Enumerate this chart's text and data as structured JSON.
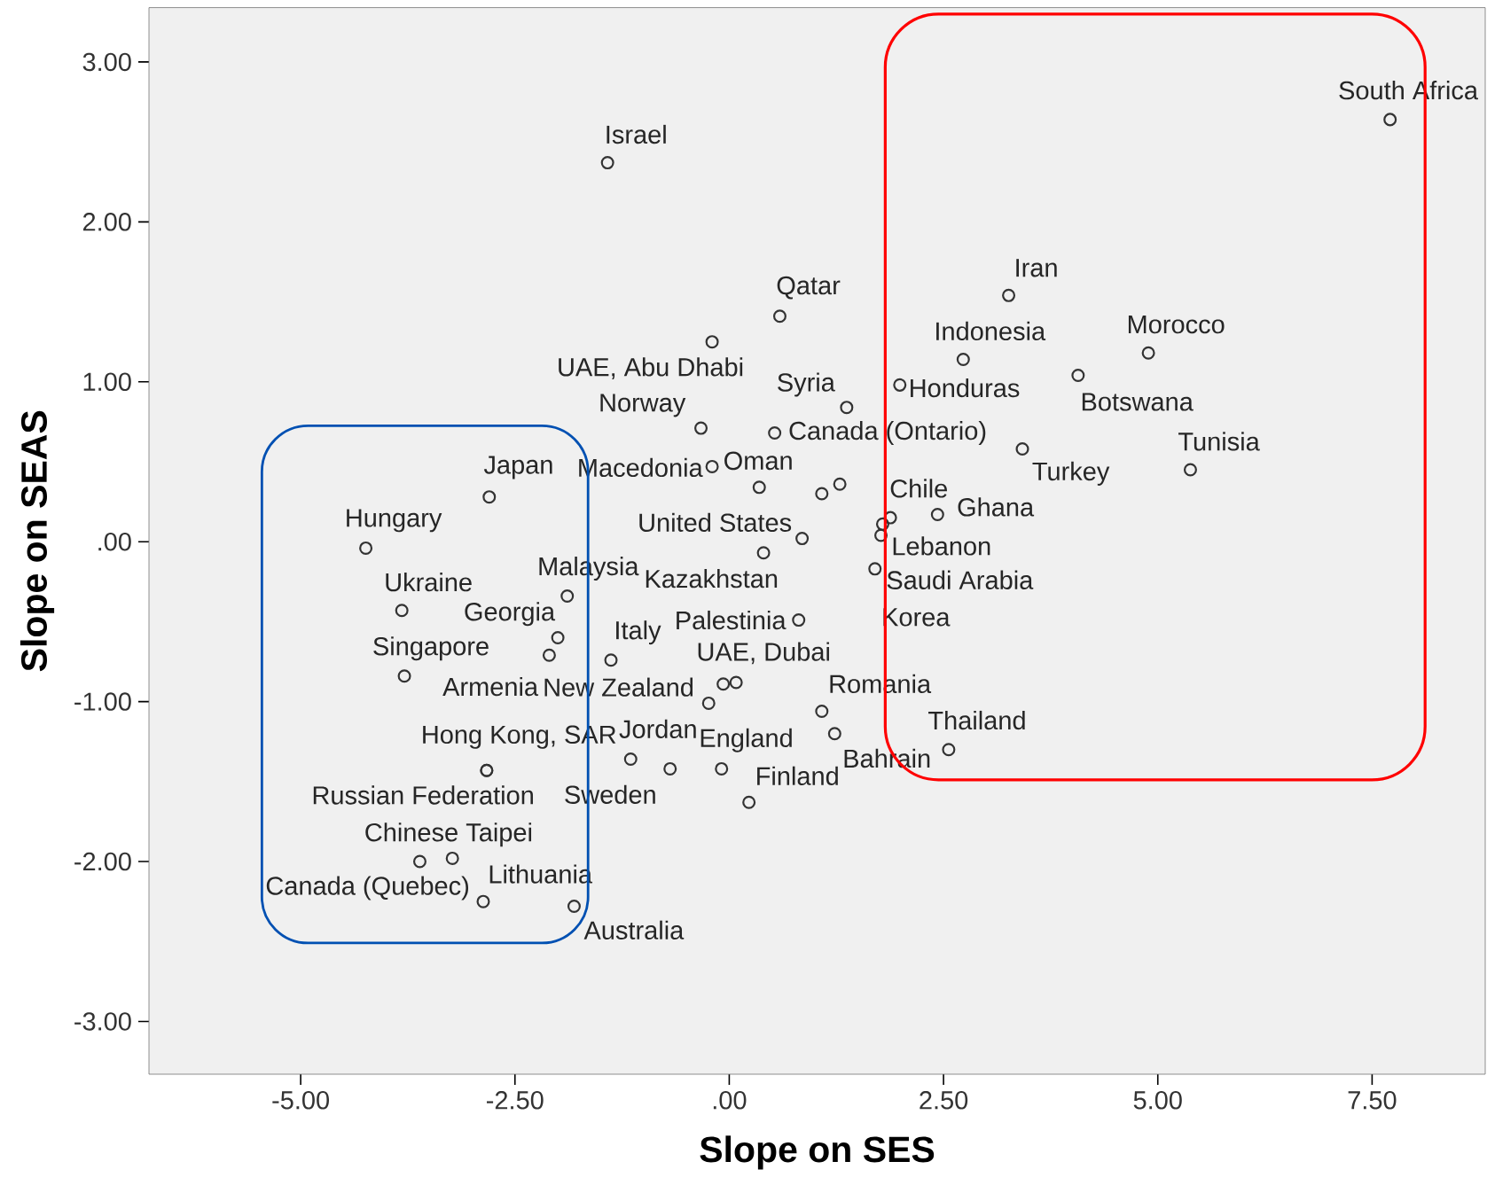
{
  "chart_data": {
    "type": "scatter",
    "xlabel": "Slope on SES",
    "ylabel": "Slope on SEAS",
    "xlim": [
      -6.77,
      8.82
    ],
    "ylim": [
      -3.33,
      3.34
    ],
    "xticks": [
      {
        "value": -5,
        "label": "-5.00"
      },
      {
        "value": -2.5,
        "label": "-2.50"
      },
      {
        "value": 0,
        "label": ".00"
      },
      {
        "value": 2.5,
        "label": "2.50"
      },
      {
        "value": 5,
        "label": "5.00"
      },
      {
        "value": 7.5,
        "label": "7.50"
      }
    ],
    "yticks": [
      {
        "value": -3,
        "label": "-3.00"
      },
      {
        "value": -2,
        "label": "-2.00"
      },
      {
        "value": -1,
        "label": "-1.00"
      },
      {
        "value": 0,
        "label": ".00"
      },
      {
        "value": 1,
        "label": "1.00"
      },
      {
        "value": 2,
        "label": "2.00"
      },
      {
        "value": 3,
        "label": "3.00"
      }
    ],
    "marker": "circle",
    "series": [
      {
        "color": "#333333",
        "x": [
          -1.42,
          7.71,
          3.26,
          0.59,
          -0.2,
          2.73,
          4.89,
          4.07,
          1.99,
          1.37,
          -0.33,
          0.53,
          3.42,
          5.38,
          -0.2,
          0.35,
          1.08,
          1.29,
          1.88,
          2.43,
          1.79,
          1.77,
          1.7,
          0.85,
          0.4,
          -4.24,
          -2.8,
          -3.82,
          -1.89,
          -2.0,
          -2.1,
          -3.79,
          -1.38,
          0.81,
          0.08,
          -0.07,
          -0.24,
          1.08,
          1.23,
          2.56,
          -1.15,
          -0.69,
          -0.09,
          0.23,
          -2.83,
          -2.83,
          -3.23,
          -3.61,
          -2.87,
          -1.81
        ],
        "values": [
          2.37,
          2.64,
          1.54,
          1.41,
          1.25,
          1.14,
          1.18,
          1.04,
          0.98,
          0.84,
          0.71,
          0.68,
          0.58,
          0.45,
          0.47,
          0.34,
          0.3,
          0.36,
          0.15,
          0.17,
          0.11,
          0.04,
          -0.17,
          0.02,
          -0.07,
          -0.04,
          0.28,
          -0.43,
          -0.34,
          -0.6,
          -0.71,
          -0.84,
          -0.74,
          -0.49,
          -0.88,
          -0.89,
          -1.01,
          -1.06,
          -1.2,
          -1.3,
          -1.36,
          -1.42,
          -1.42,
          -1.63,
          -1.43,
          -1.43,
          -1.98,
          -2.0,
          -2.25,
          -2.28
        ]
      }
    ],
    "annotations": [
      {
        "text": "Israel",
        "x": -1.42,
        "y": 2.37
      },
      {
        "text": "South Africa",
        "x": 7.71,
        "y": 2.64
      },
      {
        "text": "Iran",
        "x": 3.26,
        "y": 1.54
      },
      {
        "text": "Qatar",
        "x": 0.59,
        "y": 1.41
      },
      {
        "text": "UAE, Abu Dhabi",
        "x": -0.2,
        "y": 1.25
      },
      {
        "text": "Indonesia",
        "x": 2.73,
        "y": 1.14
      },
      {
        "text": "Morocco",
        "x": 4.89,
        "y": 1.18
      },
      {
        "text": "Botswana",
        "x": 4.07,
        "y": 1.04
      },
      {
        "text": "Honduras",
        "x": 1.99,
        "y": 0.98
      },
      {
        "text": "Syria",
        "x": 1.37,
        "y": 0.84
      },
      {
        "text": "Norway",
        "x": -0.33,
        "y": 0.71
      },
      {
        "text": "Canada (Ontario)",
        "x": 0.53,
        "y": 0.68
      },
      {
        "text": "Turkey",
        "x": 3.42,
        "y": 0.58
      },
      {
        "text": "Tunisia",
        "x": 5.38,
        "y": 0.45
      },
      {
        "text": "Macedonia",
        "x": -0.2,
        "y": 0.47
      },
      {
        "text": "Oman",
        "x": 0.35,
        "y": 0.34
      },
      {
        "text": "Chile",
        "x": 1.88,
        "y": 0.15
      },
      {
        "text": "Ghana",
        "x": 2.43,
        "y": 0.17
      },
      {
        "text": "Lebanon",
        "x": 1.79,
        "y": 0.11
      },
      {
        "text": "Saudi Arabia",
        "x": 1.77,
        "y": 0.04
      },
      {
        "text": "Korea",
        "x": 1.7,
        "y": -0.17
      },
      {
        "text": "United States",
        "x": 0.85,
        "y": 0.02
      },
      {
        "text": "Kazakhstan",
        "x": 0.4,
        "y": -0.07
      },
      {
        "text": "Hungary",
        "x": -4.24,
        "y": -0.04
      },
      {
        "text": "Japan",
        "x": -2.8,
        "y": 0.28
      },
      {
        "text": "Ukraine",
        "x": -3.82,
        "y": -0.43
      },
      {
        "text": "Malaysia",
        "x": -1.89,
        "y": -0.34
      },
      {
        "text": "Georgia",
        "x": -2.0,
        "y": -0.6
      },
      {
        "text": "Armenia",
        "x": -2.1,
        "y": -0.71
      },
      {
        "text": "Singapore",
        "x": -3.79,
        "y": -0.84
      },
      {
        "text": "Italy",
        "x": -1.38,
        "y": -0.74
      },
      {
        "text": "Palestinia",
        "x": 0.81,
        "y": -0.49
      },
      {
        "text": "UAE, Dubai",
        "x": 0.08,
        "y": -0.88
      },
      {
        "text": "New Zealand",
        "x": -0.24,
        "y": -1.01
      },
      {
        "text": "Romania",
        "x": 1.08,
        "y": -1.06
      },
      {
        "text": "Bahrain",
        "x": 1.23,
        "y": -1.2
      },
      {
        "text": "Thailand",
        "x": 2.56,
        "y": -1.3
      },
      {
        "text": "Jordan",
        "x": -1.15,
        "y": -1.36
      },
      {
        "text": "Sweden",
        "x": -0.69,
        "y": -1.42
      },
      {
        "text": "England",
        "x": -0.09,
        "y": -1.42
      },
      {
        "text": "Finland",
        "x": 0.23,
        "y": -1.63
      },
      {
        "text": "Hong Kong, SAR",
        "x": -2.83,
        "y": -1.43
      },
      {
        "text": "Russian Federation",
        "x": -2.83,
        "y": -1.43
      },
      {
        "text": "Chinese Taipei",
        "x": -3.23,
        "y": -1.98
      },
      {
        "text": "Canada (Quebec)",
        "x": -3.61,
        "y": -2.0
      },
      {
        "text": "Lithuania",
        "x": -2.87,
        "y": -2.25
      },
      {
        "text": "Australia",
        "x": -1.81,
        "y": -2.28
      }
    ]
  }
}
